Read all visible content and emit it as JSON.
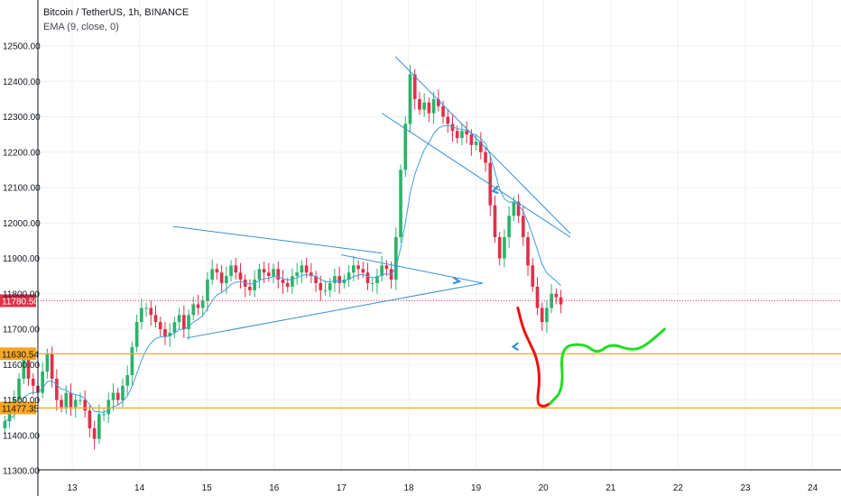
{
  "legend": {
    "title": "Bitcoin / TetherUS, 1h, BINANCE",
    "indicator": "EMA (9, close, 0)"
  },
  "colors": {
    "up": "#26a69a",
    "up_body": "#2bb36a",
    "down": "#e0304a",
    "ema": "#3fa0d8",
    "trendline": "#3a8fd6",
    "support": "#f5a623",
    "price_line": "#e0304a",
    "forecast_down": "#ee1111",
    "forecast_up": "#22dd22",
    "grid": "#eef0f3"
  },
  "chart_data": {
    "type": "candlestick",
    "title": "Bitcoin / TetherUS, 1h, BINANCE",
    "ylim": [
      11230,
      12520
    ],
    "y_ticks": [
      "11300.00",
      "11400.00",
      "11500.00",
      "11600.00",
      "11700.00",
      "11800.00",
      "11900.00",
      "12000.00",
      "12100.00",
      "12200.00",
      "12300.00",
      "12400.00",
      "12500.00"
    ],
    "x_ticks": [
      "13",
      "14",
      "15",
      "16",
      "17",
      "18",
      "19",
      "20",
      "21",
      "22",
      "23",
      "24"
    ],
    "grid": true,
    "candles_first_day": 12.0,
    "candles_step_days": 0.07,
    "closes": [
      11440,
      11470,
      11500,
      11560,
      11620,
      11560,
      11540,
      11520,
      11580,
      11630,
      11560,
      11500,
      11480,
      11520,
      11480,
      11500,
      11500,
      11470,
      11420,
      11390,
      11460,
      11460,
      11500,
      11520,
      11500,
      11540,
      11570,
      11650,
      11720,
      11760,
      11760,
      11740,
      11720,
      11700,
      11680,
      11690,
      11720,
      11740,
      11700,
      11740,
      11770,
      11760,
      11780,
      11840,
      11870,
      11860,
      11830,
      11850,
      11880,
      11860,
      11840,
      11820,
      11810,
      11840,
      11870,
      11860,
      11850,
      11870,
      11840,
      11830,
      11820,
      11850,
      11860,
      11880,
      11860,
      11850,
      11830,
      11810,
      11810,
      11830,
      11850,
      11830,
      11840,
      11860,
      11880,
      11870,
      11860,
      11830,
      11830,
      11850,
      11880,
      11870,
      11840,
      11960,
      12150,
      12280,
      12420,
      12350,
      12320,
      12340,
      12310,
      12350,
      12330,
      12300,
      12280,
      12260,
      12240,
      12260,
      12250,
      12220,
      12230,
      12200,
      12170,
      12050,
      11960,
      11900,
      11960,
      12020,
      12060,
      12020,
      11960,
      11880,
      11820,
      11760,
      11720,
      11760,
      11800,
      11790,
      11770
    ],
    "overlays": {
      "ema_period": 9,
      "price_label": "11780.50",
      "price_line": 11780.5,
      "support_labels": [
        "11630.54",
        "11477.35"
      ],
      "support_levels": [
        11630.54,
        11477.35
      ],
      "trendlines": [
        {
          "from": [
            14.5,
            11990
          ],
          "to": [
            17.6,
            11915
          ]
        },
        {
          "from": [
            14.7,
            11675
          ],
          "to": [
            19.1,
            11830
          ]
        },
        {
          "from": [
            17.0,
            11910
          ],
          "to": [
            19.1,
            11830
          ]
        },
        {
          "from": [
            17.8,
            12470
          ],
          "to": [
            20.4,
            11970
          ]
        },
        {
          "from": [
            17.6,
            12310
          ],
          "to": [
            20.4,
            11960
          ]
        }
      ],
      "arrows": [
        {
          "at": [
            18.75,
            11835
          ],
          "direction": "down-right"
        },
        {
          "at": [
            19.25,
            12090
          ],
          "direction": "down-left"
        },
        {
          "at": [
            19.55,
            11650
          ],
          "direction": "up-left"
        }
      ],
      "forecast_red": [
        [
          19.62,
          11760
        ],
        [
          19.7,
          11700
        ],
        [
          19.8,
          11660
        ],
        [
          19.9,
          11620
        ],
        [
          19.95,
          11560
        ],
        [
          19.9,
          11490
        ],
        [
          20.0,
          11480
        ],
        [
          20.1,
          11490
        ]
      ],
      "forecast_green": [
        [
          20.1,
          11490
        ],
        [
          20.3,
          11530
        ],
        [
          20.25,
          11650
        ],
        [
          20.6,
          11660
        ],
        [
          20.8,
          11630
        ],
        [
          21.0,
          11660
        ],
        [
          21.3,
          11640
        ],
        [
          21.5,
          11650
        ],
        [
          21.8,
          11700
        ]
      ]
    }
  }
}
